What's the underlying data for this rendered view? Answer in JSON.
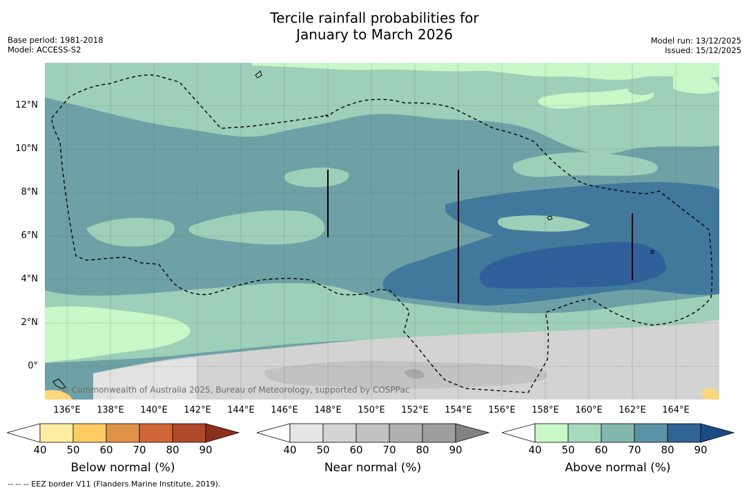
{
  "title_line1": "Tercile rainfall probabilities for",
  "title_line2": "January to March 2026",
  "base_period": "Base period: 1981-2018",
  "model": "Model: ACCESS-S2",
  "model_run": "Model run: 13/12/2025",
  "issued": "Issued: 15/12/2025",
  "copyright": "© Commonwealth of Australia 2025, Bureau of Meteorology, supported by COSPPac",
  "footnote": "-- -- -- EEZ border V11 (Flanders Marine Institute, 2019).",
  "lat_labels": [
    "12°N",
    "10°N",
    "8°N",
    "6°N",
    "4°N",
    "2°N",
    "0°"
  ],
  "lon_labels": [
    "136°E",
    "138°E",
    "140°E",
    "142°E",
    "144°E",
    "146°E",
    "148°E",
    "150°E",
    "152°E",
    "154°E",
    "156°E",
    "158°E",
    "160°E",
    "162°E",
    "164°E"
  ],
  "colorbars": [
    {
      "label": "Below normal (%)",
      "ticks": [
        "40",
        "50",
        "60",
        "70",
        "80",
        "90"
      ],
      "colors": [
        "#ffffff",
        "#feeda0",
        "#fdcc63",
        "#e09249",
        "#d06638",
        "#b04a2a",
        "#8c2f1d"
      ]
    },
    {
      "label": "Near normal (%)",
      "ticks": [
        "40",
        "50",
        "60",
        "70",
        "80",
        "90"
      ],
      "colors": [
        "#ffffff",
        "#e6e6e6",
        "#d4d4d4",
        "#c2c2c2",
        "#b0b0b0",
        "#9e9e9e",
        "#828282"
      ]
    },
    {
      "label": "Above normal (%)",
      "ticks": [
        "40",
        "50",
        "60",
        "70",
        "80",
        "90"
      ],
      "colors": [
        "#ffffff",
        "#c8f7c8",
        "#a5dabd",
        "#84b8af",
        "#5b93a6",
        "#306494",
        "#1c4b83"
      ]
    }
  ],
  "map_colors": {
    "above_50": "#c8f7c8",
    "above_60": "#9ecfb8",
    "above_70": "#6ea1a6",
    "above_80": "#41799c",
    "above_90": "#30609a",
    "near_50": "#e3e3e3",
    "near_60": "#d3d3d3",
    "near_70": "#c2c2c2",
    "below_50": "#fdd77e"
  }
}
